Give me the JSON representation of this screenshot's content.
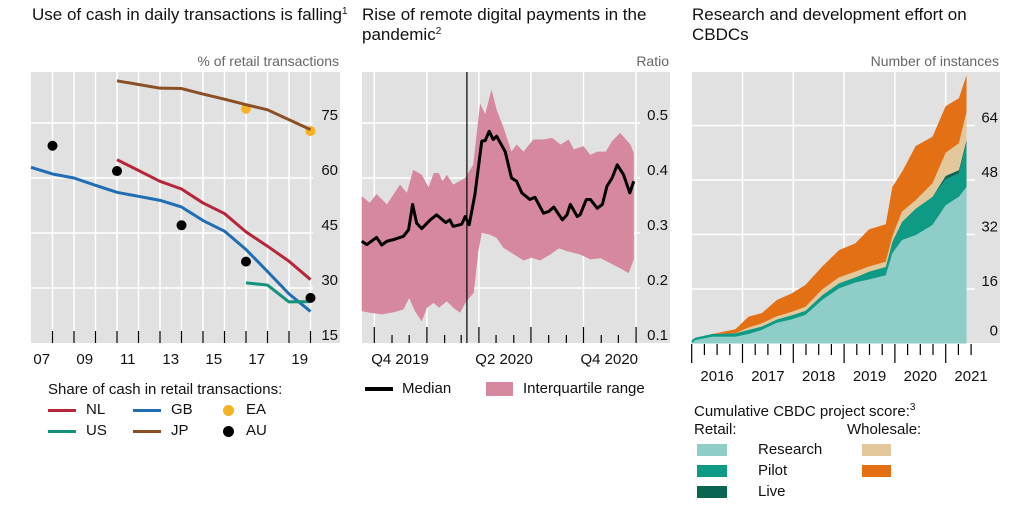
{
  "panels": [
    {
      "title": "Use of cash in daily transactions is falling",
      "footnote": "1",
      "unit": "% of retail transactions",
      "legend_title": "Share of cash in retail transactions:"
    },
    {
      "title": "Rise of remote digital payments in the pandemic",
      "footnote": "2",
      "unit": "Ratio"
    },
    {
      "title": "Research and development effort on CBDCs",
      "unit": "Number of instances",
      "legend_title": "Cumulative CBDC project score:",
      "legend_footnote": "3",
      "retail_label": "Retail:",
      "wholesale_label": "Wholesale:"
    }
  ],
  "colors": {
    "background": "#e1e1e1",
    "grid": "#ffffff"
  },
  "chart_data": [
    {
      "type": "line",
      "title": "Use of cash in daily transactions is falling",
      "ylabel": "% of retail transactions",
      "xlim": [
        2007,
        2020
      ],
      "ylim": [
        15,
        89.5
      ],
      "x_tick_labels": [
        {
          "x": 2007.5,
          "label": "07"
        },
        {
          "x": 2009.5,
          "label": "09"
        },
        {
          "x": 2011.5,
          "label": "11"
        },
        {
          "x": 2013.5,
          "label": "13"
        },
        {
          "x": 2015.5,
          "label": "15"
        },
        {
          "x": 2017.5,
          "label": "17"
        },
        {
          "x": 2019.5,
          "label": "19"
        }
      ],
      "y_ticks": [
        15,
        30,
        45,
        60,
        75
      ],
      "grid": true,
      "series": [
        {
          "name": "NL",
          "kind": "line",
          "color": "#b5263a",
          "points": [
            [
              2011,
              65
            ],
            [
              2013,
              59.1
            ],
            [
              2014,
              57
            ],
            [
              2015,
              53.2
            ],
            [
              2016,
              50.3
            ],
            [
              2017,
              45.3
            ],
            [
              2018,
              41.4
            ],
            [
              2019,
              37.3
            ],
            [
              2020,
              32.3
            ]
          ]
        },
        {
          "name": "GB",
          "kind": "line",
          "color": "#1f6db3",
          "points": [
            [
              2007,
              62.9
            ],
            [
              2008,
              61.1
            ],
            [
              2009,
              60
            ],
            [
              2010,
              58
            ],
            [
              2011,
              56.1
            ],
            [
              2012,
              55
            ],
            [
              2013,
              53.9
            ],
            [
              2014,
              52.1
            ],
            [
              2015,
              48.4
            ],
            [
              2016,
              45.5
            ],
            [
              2017,
              40.5
            ],
            [
              2018,
              34.5
            ],
            [
              2019,
              28.4
            ],
            [
              2020,
              23.6
            ]
          ]
        },
        {
          "name": "EA",
          "kind": "dots",
          "color": "#f5b324",
          "points": [
            [
              2017,
              78.9
            ],
            [
              2020,
              72.8
            ]
          ]
        },
        {
          "name": "US",
          "kind": "line",
          "color": "#13927b",
          "points": [
            [
              2017,
              31.4
            ],
            [
              2018,
              30.8
            ],
            [
              2019,
              26.2
            ],
            [
              2020,
              26.3
            ]
          ]
        },
        {
          "name": "JP",
          "kind": "line",
          "color": "#8a4f25",
          "points": [
            [
              2011,
              86.5
            ],
            [
              2012,
              85.5
            ],
            [
              2013,
              84.5
            ],
            [
              2014,
              84.4
            ],
            [
              2015,
              82.9
            ],
            [
              2016,
              81.5
            ],
            [
              2017,
              80
            ],
            [
              2018,
              78.6
            ],
            [
              2020,
              73.2
            ]
          ]
        },
        {
          "name": "AU",
          "kind": "dots",
          "color": "#000000",
          "points": [
            [
              2008,
              68.8
            ],
            [
              2011,
              61.9
            ],
            [
              2014,
              47.1
            ],
            [
              2017,
              37.2
            ],
            [
              2020,
              27.3
            ]
          ]
        }
      ]
    },
    {
      "type": "area",
      "title": "Rise of remote digital payments in the pandemic",
      "ylabel": "Ratio",
      "xlim": [
        "2019-09-08",
        "2021-01-31"
      ],
      "ylim": [
        0.1,
        0.596
      ],
      "x_tick_labels": [
        {
          "x": "2019-11-15",
          "label": "Q4 2019"
        },
        {
          "x": "2020-05-15",
          "label": "Q2 2020"
        },
        {
          "x": "2020-11-15",
          "label": "Q4 2020"
        }
      ],
      "y_ticks": [
        0.1,
        0.2,
        0.3,
        0.4,
        0.5
      ],
      "y_tick_labels": [
        "0.1",
        "0.2",
        "0.3",
        "0.4",
        "0.5"
      ],
      "grid": true,
      "marker_line": "2020-03-11",
      "median": {
        "name": "Median",
        "color": "#000000",
        "points": [
          [
            "2019-09-09",
            0.285
          ],
          [
            "2019-09-18",
            0.279
          ],
          [
            "2019-10-05",
            0.292
          ],
          [
            "2019-10-14",
            0.278
          ],
          [
            "2019-10-23",
            0.285
          ],
          [
            "2019-11-04",
            0.288
          ],
          [
            "2019-11-21",
            0.294
          ],
          [
            "2019-11-30",
            0.306
          ],
          [
            "2019-12-07",
            0.352
          ],
          [
            "2019-12-14",
            0.318
          ],
          [
            "2019-12-23",
            0.308
          ],
          [
            "2020-01-07",
            0.324
          ],
          [
            "2020-01-18",
            0.333
          ],
          [
            "2020-02-03",
            0.319
          ],
          [
            "2020-02-10",
            0.324
          ],
          [
            "2020-02-16",
            0.312
          ],
          [
            "2020-03-02",
            0.316
          ],
          [
            "2020-03-08",
            0.33
          ],
          [
            "2020-03-15",
            0.315
          ],
          [
            "2020-03-25",
            0.37
          ],
          [
            "2020-04-06",
            0.467
          ],
          [
            "2020-04-12",
            0.468
          ],
          [
            "2020-04-19",
            0.485
          ],
          [
            "2020-04-26",
            0.47
          ],
          [
            "2020-05-02",
            0.476
          ],
          [
            "2020-05-17",
            0.448
          ],
          [
            "2020-05-28",
            0.4
          ],
          [
            "2020-06-06",
            0.394
          ],
          [
            "2020-06-15",
            0.373
          ],
          [
            "2020-06-29",
            0.361
          ],
          [
            "2020-07-08",
            0.365
          ],
          [
            "2020-07-23",
            0.336
          ],
          [
            "2020-08-01",
            0.339
          ],
          [
            "2020-08-10",
            0.347
          ],
          [
            "2020-08-25",
            0.324
          ],
          [
            "2020-09-02",
            0.333
          ],
          [
            "2020-09-08",
            0.352
          ],
          [
            "2020-09-20",
            0.33
          ],
          [
            "2020-09-25",
            0.333
          ],
          [
            "2020-10-06",
            0.361
          ],
          [
            "2020-10-13",
            0.361
          ],
          [
            "2020-10-25",
            0.345
          ],
          [
            "2020-11-03",
            0.352
          ],
          [
            "2020-11-11",
            0.385
          ],
          [
            "2020-11-20",
            0.4
          ],
          [
            "2020-11-29",
            0.424
          ],
          [
            "2020-12-10",
            0.406
          ],
          [
            "2020-12-21",
            0.373
          ],
          [
            "2020-12-28",
            0.394
          ]
        ]
      },
      "interquartile": {
        "name": "Interquartile range",
        "color": "#d5889e",
        "upper": [
          [
            "2019-09-09",
            0.367
          ],
          [
            "2019-09-23",
            0.355
          ],
          [
            "2019-10-05",
            0.371
          ],
          [
            "2019-10-23",
            0.352
          ],
          [
            "2019-11-15",
            0.388
          ],
          [
            "2019-11-27",
            0.373
          ],
          [
            "2019-12-08",
            0.415
          ],
          [
            "2019-12-23",
            0.406
          ],
          [
            "2020-01-04",
            0.383
          ],
          [
            "2020-01-13",
            0.409
          ],
          [
            "2020-01-22",
            0.409
          ],
          [
            "2020-01-28",
            0.394
          ],
          [
            "2020-02-05",
            0.406
          ],
          [
            "2020-02-16",
            0.388
          ],
          [
            "2020-03-08",
            0.4
          ],
          [
            "2020-03-22",
            0.424
          ],
          [
            "2020-04-03",
            0.536
          ],
          [
            "2020-04-12",
            0.516
          ],
          [
            "2020-04-23",
            0.561
          ],
          [
            "2020-05-02",
            0.524
          ],
          [
            "2020-05-14",
            0.492
          ],
          [
            "2020-05-28",
            0.448
          ],
          [
            "2020-06-06",
            0.461
          ],
          [
            "2020-06-18",
            0.448
          ],
          [
            "2020-07-05",
            0.47
          ],
          [
            "2020-07-23",
            0.47
          ],
          [
            "2020-08-07",
            0.473
          ],
          [
            "2020-08-22",
            0.461
          ],
          [
            "2020-09-05",
            0.47
          ],
          [
            "2020-09-14",
            0.452
          ],
          [
            "2020-10-01",
            0.458
          ],
          [
            "2020-10-13",
            0.442
          ],
          [
            "2020-10-25",
            0.448
          ],
          [
            "2020-11-09",
            0.448
          ],
          [
            "2020-11-20",
            0.467
          ],
          [
            "2020-12-04",
            0.482
          ],
          [
            "2020-12-22",
            0.461
          ],
          [
            "2020-12-28",
            0.445
          ]
        ],
        "lower": [
          [
            "2019-09-09",
            0.158
          ],
          [
            "2019-09-23",
            0.155
          ],
          [
            "2019-10-14",
            0.152
          ],
          [
            "2019-11-04",
            0.156
          ],
          [
            "2019-11-21",
            0.161
          ],
          [
            "2019-12-01",
            0.182
          ],
          [
            "2019-12-11",
            0.158
          ],
          [
            "2019-12-23",
            0.139
          ],
          [
            "2020-01-01",
            0.164
          ],
          [
            "2020-01-13",
            0.173
          ],
          [
            "2020-01-22",
            0.164
          ],
          [
            "2020-02-05",
            0.176
          ],
          [
            "2020-02-16",
            0.164
          ],
          [
            "2020-02-28",
            0.155
          ],
          [
            "2020-03-10",
            0.176
          ],
          [
            "2020-03-23",
            0.191
          ],
          [
            "2020-03-31",
            0.267
          ],
          [
            "2020-04-06",
            0.3
          ],
          [
            "2020-04-20",
            0.297
          ],
          [
            "2020-05-02",
            0.291
          ],
          [
            "2020-05-14",
            0.273
          ],
          [
            "2020-06-06",
            0.258
          ],
          [
            "2020-06-18",
            0.25
          ],
          [
            "2020-07-02",
            0.255
          ],
          [
            "2020-07-17",
            0.25
          ],
          [
            "2020-08-04",
            0.261
          ],
          [
            "2020-08-19",
            0.272
          ],
          [
            "2020-09-02",
            0.267
          ],
          [
            "2020-09-25",
            0.261
          ],
          [
            "2020-10-13",
            0.252
          ],
          [
            "2020-10-31",
            0.254
          ],
          [
            "2020-11-17",
            0.245
          ],
          [
            "2020-12-04",
            0.236
          ],
          [
            "2020-12-19",
            0.227
          ],
          [
            "2020-12-28",
            0.252
          ]
        ]
      }
    },
    {
      "type": "area",
      "stacked": true,
      "title": "Research and development effort on CBDCs",
      "ylabel": "Number of instances",
      "xlim": [
        2016,
        2021.6
      ],
      "ylim": [
        0,
        79.6
      ],
      "x_tick_labels": [
        {
          "x": 2016.5,
          "label": "2016"
        },
        {
          "x": 2017.5,
          "label": "2017"
        },
        {
          "x": 2018.5,
          "label": "2018"
        },
        {
          "x": 2019.5,
          "label": "2019"
        },
        {
          "x": 2020.5,
          "label": "2020"
        },
        {
          "x": 2021.5,
          "label": "2021"
        }
      ],
      "y_ticks": [
        0,
        16,
        32,
        48,
        64
      ],
      "grid": true,
      "x": [
        2016.0,
        2016.07,
        2016.4,
        2016.86,
        2017.12,
        2017.38,
        2017.68,
        2017.97,
        2018.24,
        2018.57,
        2018.9,
        2019.22,
        2019.49,
        2019.82,
        2019.95,
        2020.14,
        2020.41,
        2020.74,
        2021.0,
        2021.26,
        2021.41
      ],
      "series": [
        {
          "name": "Research",
          "group": "Retail",
          "color": "#8ecdc8",
          "values": [
            0,
            1,
            2,
            2,
            2.8,
            4,
            6.1,
            7.1,
            8.4,
            12.8,
            16.2,
            17.9,
            18.8,
            20,
            26.5,
            30.4,
            31.8,
            34.8,
            40.6,
            43.1,
            46
          ]
        },
        {
          "name": "Pilot",
          "group": "Retail",
          "color": "#0e9a85",
          "values": [
            1,
            0.7,
            0.8,
            1,
            1.2,
            1,
            1,
            1.2,
            1.2,
            1.4,
            1.5,
            1.5,
            2.3,
            2.5,
            3.4,
            5.3,
            7.8,
            8.3,
            7.6,
            6.9,
            12.8
          ]
        },
        {
          "name": "Live",
          "group": "Retail",
          "color": "#0b6651",
          "values": [
            0,
            0,
            0,
            0,
            0,
            0,
            0,
            0,
            0,
            0,
            0,
            0,
            0,
            0,
            0,
            0,
            0,
            0,
            1,
            0.9,
            0.9
          ]
        },
        {
          "name": "Research",
          "group": "Wholesale",
          "color": "#e3c89c",
          "values": [
            0,
            0,
            0,
            0,
            0.7,
            0.9,
            0.9,
            1,
            1.2,
            1.7,
            1.7,
            1.7,
            1.5,
            1.5,
            1.5,
            3,
            2.5,
            3.9,
            6.8,
            7.9,
            8.3
          ]
        },
        {
          "name": "Pilot",
          "group": "Wholesale",
          "color": "#e47016",
          "values": [
            0,
            0,
            0,
            1.2,
            3.2,
            3,
            4.8,
            5.4,
            6.4,
            6.7,
            8,
            8.3,
            10.9,
            11,
            14.6,
            11.7,
            15.9,
            13.7,
            13.7,
            13.2,
            10.8
          ]
        }
      ]
    }
  ]
}
